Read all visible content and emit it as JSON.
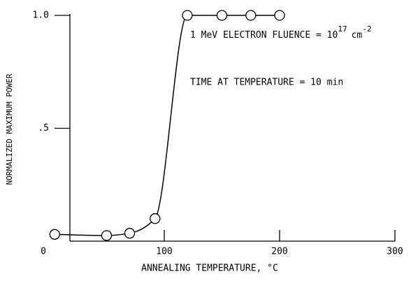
{
  "chart_data": {
    "type": "line",
    "x_label": "ANNEALING TEMPERATURE, °C",
    "y_label": "NORMALIZED MAXIMUM POWER",
    "annotations": [
      {
        "text": "1 MeV ELECTRON FLUENCE = 10",
        "sup": "17",
        "unit": "cm",
        "unit_sup": "-2"
      },
      {
        "text": "TIME AT TEMPERATURE = 10 min"
      }
    ],
    "x": [
      5,
      50,
      70,
      92,
      120,
      150,
      175,
      200
    ],
    "values": [
      0.03,
      0.025,
      0.035,
      0.1,
      1.0,
      1.0,
      1.0,
      1.0
    ],
    "color": "#000000",
    "marker": "open-circle",
    "xlim": [
      0,
      300
    ],
    "xticks": [
      0,
      100,
      200,
      300
    ],
    "ylim": [
      0,
      1.0
    ],
    "yticks": [
      {
        "value": 0.5,
        "label": ".5"
      },
      {
        "value": 1.0,
        "label": "1.0"
      }
    ],
    "grid": false
  }
}
